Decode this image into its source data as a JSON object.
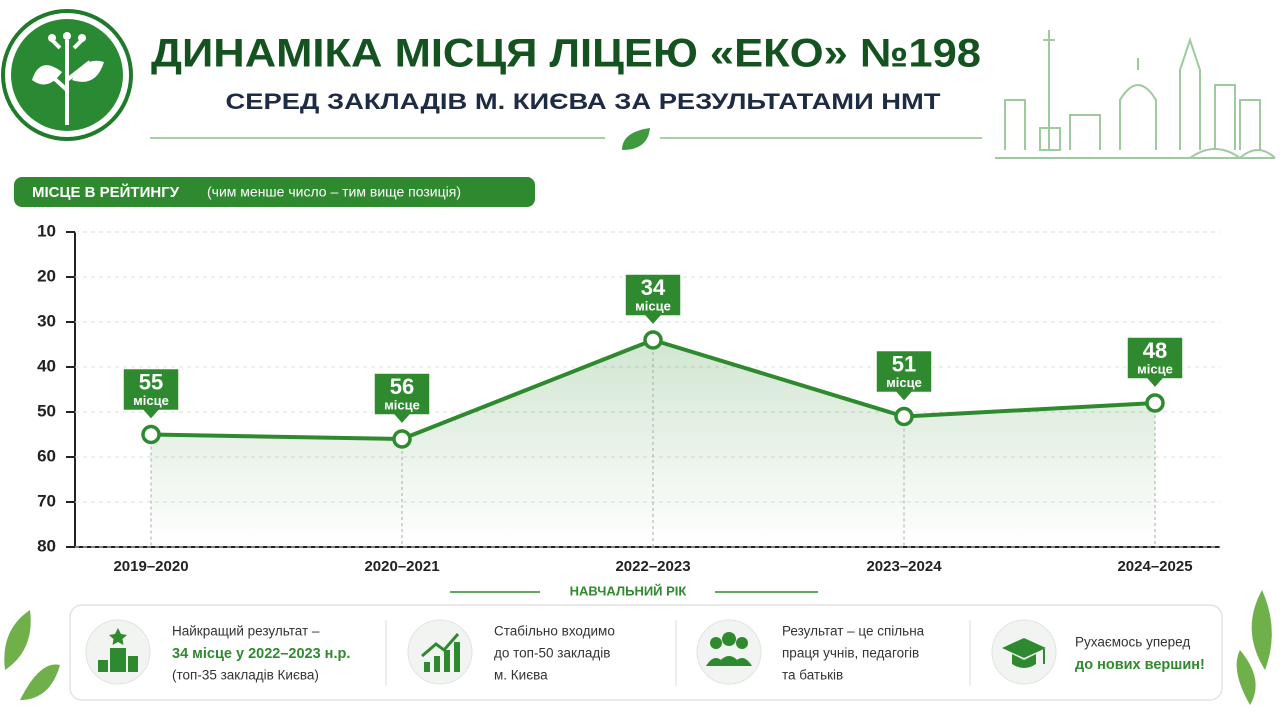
{
  "chart_data": {
    "type": "line",
    "title": "ДИНАМІКА МІСЦЯ ЛІЦЕЮ «ЕКО» №198",
    "subtitle": "СЕРЕД ЗАКЛАДІВ  М. КИЄВА ЗА РЕЗУЛЬТАТАМИ НМТ",
    "y_label": "МІСЦЕ В РЕЙТИНГУ",
    "y_label_note": "(чим менше число – тим вище позиція)",
    "x_label": "НАВЧАЛЬНИЙ РІК",
    "categories": [
      "2019–2020",
      "2020–2021",
      "2022–2023",
      "2023–2024",
      "2024–2025"
    ],
    "values": [
      55,
      56,
      34,
      51,
      48
    ],
    "value_unit_label": "місце",
    "color": "#2f8a2f",
    "ylim": [
      10,
      80
    ],
    "y_inverted": true,
    "yticks": [
      10,
      20,
      30,
      40,
      50,
      60,
      70,
      80
    ],
    "grid": true
  },
  "highlights": [
    {
      "lines": [
        "Найкращий результат –",
        "34 місце у 2022–2023 н.р.",
        "(топ-35 закладів Києва)"
      ]
    },
    {
      "lines": [
        "Стабільно входимо",
        "до топ-50 закладів",
        "м. Києва"
      ]
    },
    {
      "lines": [
        "Результат – це спільна",
        "праця учнів, педагогів",
        "та батьків"
      ]
    },
    {
      "lines": [
        "Рухаємось уперед",
        "до нових вершин!"
      ]
    }
  ]
}
